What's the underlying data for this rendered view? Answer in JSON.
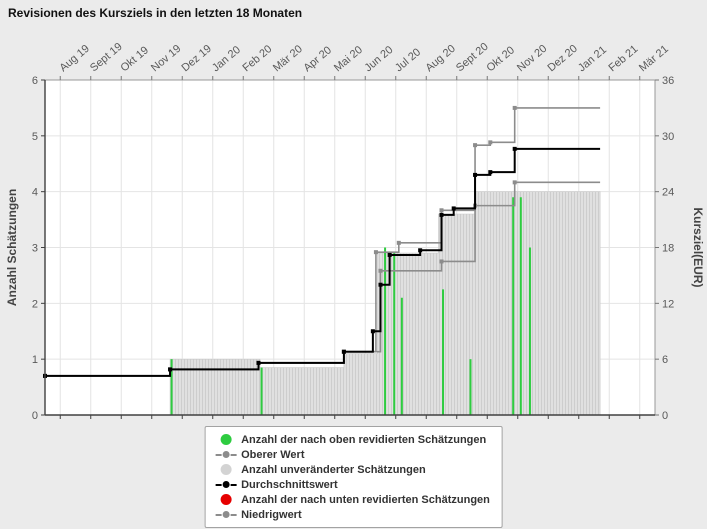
{
  "title": "Revisionen des Kursziels in den letzten 18 Monaten",
  "legend": {
    "items": [
      {
        "label": "Anzahl der nach oben revidierten Schätzungen",
        "marker": "dot",
        "color": "#2ecc40"
      },
      {
        "label": "Oberer Wert",
        "marker": "line-dot",
        "color": "#8c8c8c"
      },
      {
        "label": "Anzahl unveränderter Schätzungen",
        "marker": "dot",
        "color": "#d3d3d3"
      },
      {
        "label": "Durchschnittswert",
        "marker": "line-dot",
        "color": "#000000"
      },
      {
        "label": "Anzahl der nach unten revidierten Schätzungen",
        "marker": "dot",
        "color": "#e60000"
      },
      {
        "label": "Niedrigwert",
        "marker": "line-dot",
        "color": "#8c8c8c"
      }
    ]
  },
  "chart_data": {
    "type": "line",
    "subtype": "step-combo-with-bars-and-spikes",
    "title": "Revisionen des Kursziels in den letzten 18 Monaten",
    "x_axis": {
      "position": "top",
      "labels": [
        "Aug 19",
        "Sept 19",
        "Okt 19",
        "Nov 19",
        "Dez 19",
        "Jan 20",
        "Feb 20",
        "Mär 20",
        "Apr 20",
        "Mai 20",
        "Jun 20",
        "Jul 20",
        "Aug 20",
        "Sept 20",
        "Okt 20",
        "Nov 20",
        "Dez 20",
        "Jan 21",
        "Feb 21",
        "Mär 21"
      ]
    },
    "y_left": {
      "label": "Anzahl Schätzungen",
      "min": 0,
      "max": 6,
      "ticks": [
        0,
        1,
        2,
        3,
        4,
        5,
        6
      ]
    },
    "y_right": {
      "label": "Kursziel(EUR)",
      "min": 0,
      "max": 36,
      "ticks": [
        0,
        6,
        12,
        18,
        24,
        30,
        36
      ]
    },
    "grid": true,
    "legend_position": "bottom",
    "series_end_month": 18.2,
    "unchanged_estimates_steps": [
      [
        4.1,
        1.0
      ],
      [
        7.05,
        0.85
      ],
      [
        9.8,
        1.1
      ],
      [
        10.9,
        2.9
      ],
      [
        12.9,
        3.6
      ],
      [
        14.1,
        4.0
      ]
    ],
    "up_revisions_spikes": [
      [
        4.15,
        1.0
      ],
      [
        7.1,
        0.85
      ],
      [
        11.15,
        3.0
      ],
      [
        11.45,
        2.9
      ],
      [
        11.7,
        2.1
      ],
      [
        13.05,
        2.25
      ],
      [
        13.95,
        1.0
      ],
      [
        15.35,
        3.9
      ],
      [
        15.6,
        3.9
      ],
      [
        15.9,
        3.0
      ]
    ],
    "down_revisions_spikes": [],
    "price_lines": {
      "upper": {
        "name": "Oberer Wert",
        "color": "#8c8c8c",
        "points_eur": [
          [
            0,
            4.2
          ],
          [
            4.1,
            4.9
          ],
          [
            7.0,
            5.6
          ],
          [
            9.8,
            6.8
          ],
          [
            10.85,
            17.5
          ],
          [
            11.6,
            18.5
          ],
          [
            13.0,
            22.0
          ],
          [
            14.1,
            29.0
          ],
          [
            14.6,
            29.3
          ],
          [
            15.4,
            33.0
          ]
        ]
      },
      "average": {
        "name": "Durchschnittswert",
        "color": "#000000",
        "points_eur": [
          [
            0,
            4.2
          ],
          [
            4.1,
            4.9
          ],
          [
            7.0,
            5.6
          ],
          [
            9.8,
            6.8
          ],
          [
            10.75,
            9.0
          ],
          [
            11.0,
            14.0
          ],
          [
            11.3,
            17.2
          ],
          [
            12.3,
            17.7
          ],
          [
            13.0,
            21.5
          ],
          [
            13.4,
            22.2
          ],
          [
            14.1,
            25.8
          ],
          [
            14.6,
            26.1
          ],
          [
            15.4,
            28.6
          ]
        ]
      },
      "lower": {
        "name": "Niedrigwert",
        "color": "#8c8c8c",
        "points_eur": [
          [
            0,
            4.2
          ],
          [
            4.1,
            4.9
          ],
          [
            7.0,
            5.6
          ],
          [
            9.8,
            6.8
          ],
          [
            11.0,
            15.5
          ],
          [
            13.0,
            16.5
          ],
          [
            14.1,
            22.5
          ],
          [
            15.4,
            25.0
          ]
        ]
      }
    },
    "colors": {
      "up": "#2ecc40",
      "unchanged_fill": "#e0e0e0",
      "unchanged_hatch": "#cdcdcd",
      "down": "#e60000",
      "grid": "#e4e4e4",
      "frame": "#999999",
      "axis_dark": "#404040",
      "tick_text": "#595959",
      "axis_title_text": "#444444",
      "plot_bg": "#ffffff",
      "page_bg": "#ebebeb"
    }
  }
}
